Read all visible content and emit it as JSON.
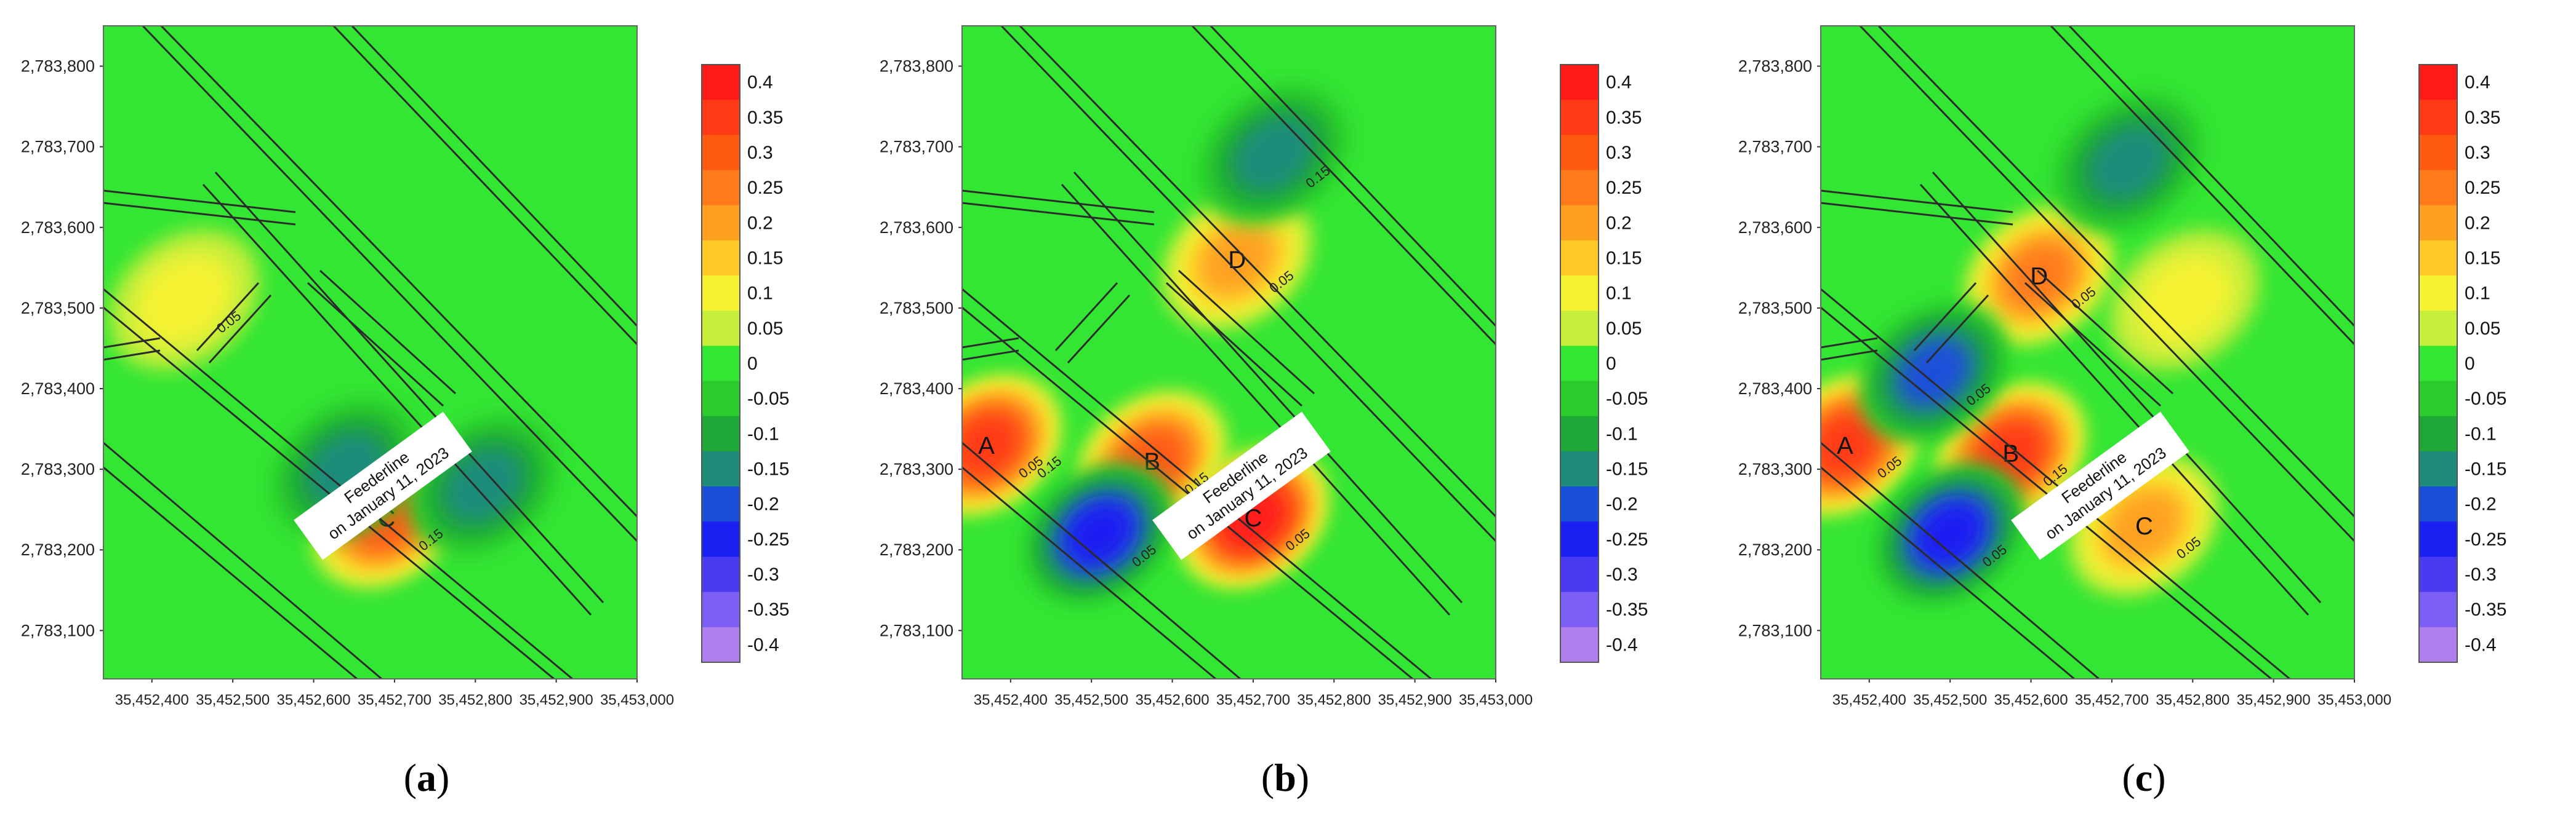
{
  "colorbar": {
    "levels": [
      {
        "label": "0.4",
        "color": "#ff1a1a"
      },
      {
        "label": "0.35",
        "color": "#ff3a14"
      },
      {
        "label": "0.3",
        "color": "#ff5a12"
      },
      {
        "label": "0.25",
        "color": "#ff7a1a"
      },
      {
        "label": "0.2",
        "color": "#ffa020"
      },
      {
        "label": "0.15",
        "color": "#ffc826"
      },
      {
        "label": "0.1",
        "color": "#f5f232"
      },
      {
        "label": "0.05",
        "color": "#c6ee3a"
      },
      {
        "label": "0",
        "color": "#33e633"
      },
      {
        "label": "-0.05",
        "color": "#2ccb2c"
      },
      {
        "label": "-0.1",
        "color": "#1fa839"
      },
      {
        "label": "-0.15",
        "color": "#1f8c7a"
      },
      {
        "label": "-0.2",
        "color": "#1a4fd9"
      },
      {
        "label": "-0.25",
        "color": "#1a1ff2"
      },
      {
        "label": "-0.3",
        "color": "#4a3af0"
      },
      {
        "label": "-0.35",
        "color": "#7a5ff2"
      },
      {
        "label": "-0.4",
        "color": "#b07fee"
      }
    ]
  },
  "axes": {
    "y_ticks": [
      "2,783,800",
      "2,783,700",
      "2,783,600",
      "2,783,500",
      "2,783,400",
      "2,783,300",
      "2,783,200",
      "2,783,100"
    ],
    "x_ticks": [
      "35,452,400",
      "35,452,500",
      "35,452,600",
      "35,452,700",
      "35,452,800",
      "35,452,900",
      "35,453,000"
    ]
  },
  "chart_data": [
    {
      "type": "heatmap",
      "caption": "a",
      "xlim": [
        35452340,
        35453000
      ],
      "ylim": [
        2783040,
        2783850
      ],
      "feeder_label": [
        "Feederline",
        "on January 11, 2023"
      ],
      "contour_labels": [
        "0.15",
        "0.05",
        "0.05"
      ],
      "anomalies": [
        {
          "label": "C",
          "x": 35452690,
          "y": 2783240,
          "value": 0.3
        },
        {
          "label": "",
          "x": 35452440,
          "y": 2783510,
          "value": 0.1
        },
        {
          "label": "",
          "x": 35452640,
          "y": 2783300,
          "value": -0.15
        },
        {
          "label": "",
          "x": 35452810,
          "y": 2783280,
          "value": -0.15
        }
      ]
    },
    {
      "type": "heatmap",
      "caption": "b",
      "xlim": [
        35452340,
        35453000
      ],
      "ylim": [
        2783040,
        2783850
      ],
      "feeder_label": [
        "Feederline",
        "on January 11, 2023"
      ],
      "contour_labels": [
        "0.05",
        "0.15",
        "0.05",
        "0.05",
        "0.05",
        "0.15",
        "0.15",
        "0.05"
      ],
      "anomalies": [
        {
          "label": "A",
          "x": 35452370,
          "y": 2783330,
          "value": 0.35
        },
        {
          "label": "B",
          "x": 35452575,
          "y": 2783310,
          "value": 0.3
        },
        {
          "label": "C",
          "x": 35452700,
          "y": 2783240,
          "value": 0.4
        },
        {
          "label": "D",
          "x": 35452680,
          "y": 2783560,
          "value": 0.2
        },
        {
          "label": "",
          "x": 35452510,
          "y": 2783220,
          "value": -0.25
        },
        {
          "label": "",
          "x": 35452725,
          "y": 2783690,
          "value": -0.15
        }
      ]
    },
    {
      "type": "heatmap",
      "caption": "c",
      "xlim": [
        35452340,
        35453000
      ],
      "ylim": [
        2783040,
        2783850
      ],
      "feeder_label": [
        "Feederline",
        "on January 11, 2023"
      ],
      "contour_labels": [
        "0.05",
        "0.15",
        "0.05",
        "0.05",
        "0.05",
        "0.05"
      ],
      "anomalies": [
        {
          "label": "A",
          "x": 35452370,
          "y": 2783330,
          "value": 0.35
        },
        {
          "label": "B",
          "x": 35452575,
          "y": 2783320,
          "value": 0.35
        },
        {
          "label": "C",
          "x": 35452740,
          "y": 2783230,
          "value": 0.2
        },
        {
          "label": "D",
          "x": 35452610,
          "y": 2783540,
          "value": 0.25
        },
        {
          "label": "",
          "x": 35452500,
          "y": 2783220,
          "value": -0.25
        },
        {
          "label": "",
          "x": 35452480,
          "y": 2783420,
          "value": -0.2
        },
        {
          "label": "",
          "x": 35452720,
          "y": 2783680,
          "value": -0.15
        },
        {
          "label": "",
          "x": 35452790,
          "y": 2783510,
          "value": 0.1
        }
      ]
    }
  ]
}
